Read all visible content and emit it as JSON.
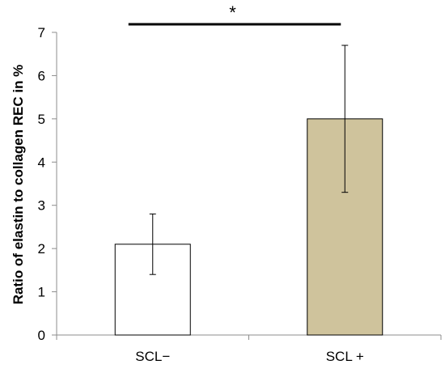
{
  "chart_data": {
    "type": "bar",
    "categories": [
      "SCL−",
      "SCL +"
    ],
    "values": [
      2.1,
      5.0
    ],
    "error_bars": [
      {
        "low": 1.4,
        "high": 2.8
      },
      {
        "low": 3.3,
        "high": 6.7
      }
    ],
    "bar_colors": [
      "#ffffff",
      "#cfc39c"
    ],
    "bar_stroke": "#000000",
    "ylabel": "Ratio of elastin to collagen REC in %",
    "xlabel": "",
    "ylim": [
      0,
      7
    ],
    "yticks": [
      "0",
      "1",
      "2",
      "3",
      "4",
      "5",
      "6",
      "7"
    ],
    "grid": false,
    "significance": {
      "label": "*",
      "between": [
        0,
        1
      ]
    }
  }
}
